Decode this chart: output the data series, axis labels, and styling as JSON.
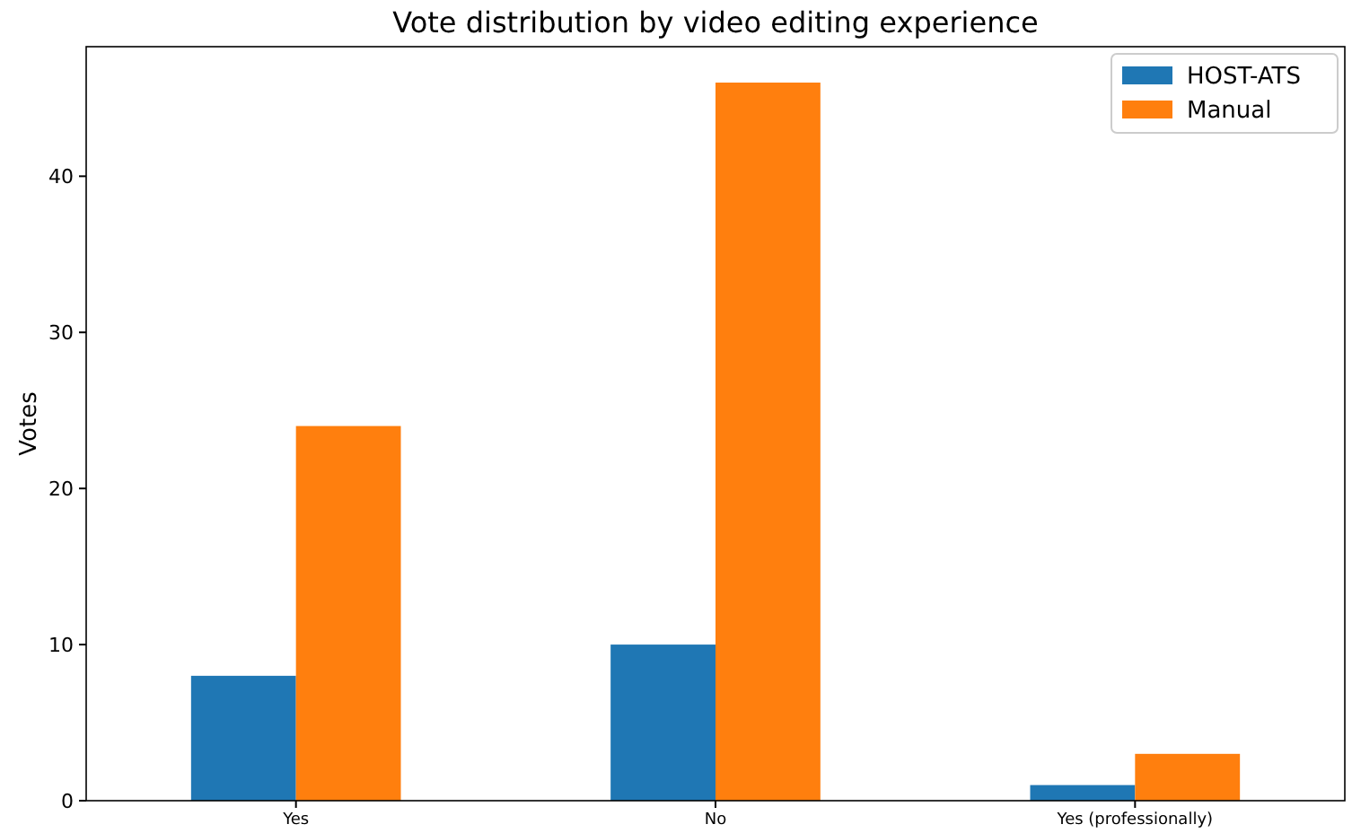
{
  "chart_data": {
    "type": "bar",
    "title": "Vote distribution by video editing experience",
    "ylabel": "Votes",
    "categories": [
      "Yes",
      "No",
      "Yes (professionally)"
    ],
    "series": [
      {
        "name": "HOST-ATS",
        "color": "#1f77b4",
        "values": [
          8,
          10,
          1
        ]
      },
      {
        "name": "Manual",
        "color": "#ff7f0e",
        "values": [
          24,
          46,
          3
        ]
      }
    ],
    "ylim": [
      0,
      48.3
    ],
    "yticks": [
      0,
      10,
      20,
      30,
      40
    ],
    "grid": false,
    "legend": "top right"
  }
}
